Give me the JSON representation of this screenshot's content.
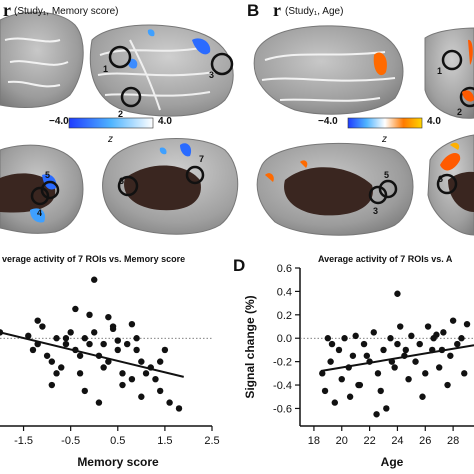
{
  "figure": {
    "panel_b_letter": "B",
    "panel_d_letter": "D",
    "header_left": {
      "r": "r",
      "subtitle": "(Study₁, Memory score)"
    },
    "header_right": {
      "r": "r",
      "subtitle": "(Study₁, Age)"
    },
    "colorbar_left": {
      "min_label": "−4.0",
      "max_label": "4.0",
      "unit": "z",
      "colors": [
        "#1e3cff",
        "#4fb4ff",
        "#ffffff"
      ]
    },
    "colorbar_right": {
      "min_label": "−4.0",
      "max_label": "4.0",
      "unit": "z",
      "colors": [
        "#1e3cff",
        "#4fb4ff",
        "#ffffff",
        "#ff7a00",
        "#ffd400"
      ]
    },
    "roi_labels": [
      "1",
      "2",
      "3",
      "4",
      "5",
      "6",
      "7"
    ],
    "roi_labels_right": [
      "1",
      "2",
      "3",
      "5",
      "6"
    ]
  },
  "chart_data": [
    {
      "type": "scatter",
      "title": "verage activity of 7 ROIs vs. Memory score",
      "xlabel": "Memory score",
      "ylabel": "",
      "xticks": [
        "-1.5",
        "-0.5",
        "0.5",
        "1.5",
        "2.5"
      ],
      "xlim": [
        -2.0,
        2.5
      ],
      "ylim": [
        -0.75,
        0.6
      ],
      "reference_line_y": 0.0,
      "fit_line": {
        "x": [
          -2.0,
          1.9
        ],
        "y": [
          0.05,
          -0.33
        ]
      },
      "x": [
        -2.0,
        -1.4,
        -1.3,
        -1.2,
        -1.1,
        -1.0,
        -0.9,
        -0.8,
        -0.7,
        -0.6,
        -0.5,
        -0.4,
        -0.3,
        -0.2,
        -0.1,
        0.0,
        0.1,
        0.2,
        0.3,
        0.4,
        0.5,
        0.6,
        0.7,
        0.8,
        0.9,
        1.0,
        1.2,
        1.4,
        1.5,
        1.8,
        -1.2,
        -0.9,
        -0.6,
        -0.3,
        0.1,
        0.4,
        0.6,
        0.9,
        1.1,
        1.4,
        -0.4,
        -0.1,
        0.2,
        0.8,
        1.0,
        -0.8,
        0.3,
        -0.2,
        0.5,
        1.3,
        0.0,
        1.6
      ],
      "y": [
        0.05,
        0.02,
        -0.1,
        -0.05,
        0.1,
        -0.15,
        -0.2,
        0.0,
        -0.25,
        -0.05,
        0.05,
        -0.1,
        -0.3,
        0.0,
        0.2,
        0.05,
        -0.15,
        -0.05,
        -0.2,
        0.1,
        -0.1,
        -0.3,
        -0.05,
        -0.35,
        0.0,
        -0.2,
        -0.25,
        -0.45,
        -0.1,
        -0.6,
        0.15,
        -0.4,
        0.0,
        -0.15,
        -0.55,
        0.08,
        -0.4,
        -0.1,
        -0.3,
        -0.2,
        0.25,
        -0.05,
        -0.25,
        0.12,
        -0.5,
        -0.3,
        0.18,
        -0.45,
        -0.02,
        -0.35,
        0.5,
        -0.55
      ]
    },
    {
      "type": "scatter",
      "title": "Average activity of 7 ROIs vs. A",
      "xlabel": "Age",
      "ylabel": "Signal change (%)",
      "xticks": [
        "18",
        "20",
        "22",
        "24",
        "26",
        "28"
      ],
      "yticks": [
        "0.6",
        "0.4",
        "0.2",
        "0.0",
        "-0.2",
        "-0.4",
        "-0.6"
      ],
      "xlim": [
        17.0,
        29.5
      ],
      "ylim": [
        -0.75,
        0.6
      ],
      "reference_line_y": 0.0,
      "fit_line": {
        "x": [
          18.5,
          29.5
        ],
        "y": [
          -0.28,
          -0.06
        ]
      },
      "x": [
        18.6,
        18.8,
        19.0,
        19.2,
        19.5,
        19.8,
        20.0,
        20.2,
        20.5,
        20.8,
        21.0,
        21.3,
        21.6,
        22.0,
        22.3,
        22.6,
        23.0,
        23.2,
        23.5,
        23.8,
        24.0,
        24.2,
        24.5,
        24.8,
        25.0,
        25.3,
        25.6,
        26.0,
        26.2,
        26.5,
        26.8,
        27.0,
        27.3,
        27.6,
        28.0,
        28.3,
        28.6,
        29.0,
        19.3,
        20.6,
        21.8,
        22.8,
        23.6,
        24.6,
        25.8,
        26.6,
        27.8,
        28.8,
        24.0,
        21.2,
        22.5,
        27.2
      ],
      "y": [
        -0.3,
        -0.45,
        0.0,
        -0.2,
        -0.55,
        -0.1,
        -0.35,
        0.0,
        -0.25,
        -0.15,
        0.02,
        -0.4,
        -0.05,
        -0.2,
        0.05,
        -0.3,
        -0.1,
        -0.6,
        0.0,
        -0.25,
        -0.05,
        0.1,
        -0.15,
        -0.35,
        0.02,
        -0.2,
        -0.05,
        -0.3,
        0.1,
        -0.1,
        0.03,
        -0.25,
        0.05,
        -0.4,
        0.15,
        -0.05,
        0.0,
        0.12,
        -0.05,
        -0.5,
        -0.15,
        -0.45,
        -0.2,
        -0.1,
        -0.5,
        0.0,
        -0.15,
        -0.3,
        0.38,
        -0.4,
        -0.65,
        -0.1
      ]
    }
  ]
}
